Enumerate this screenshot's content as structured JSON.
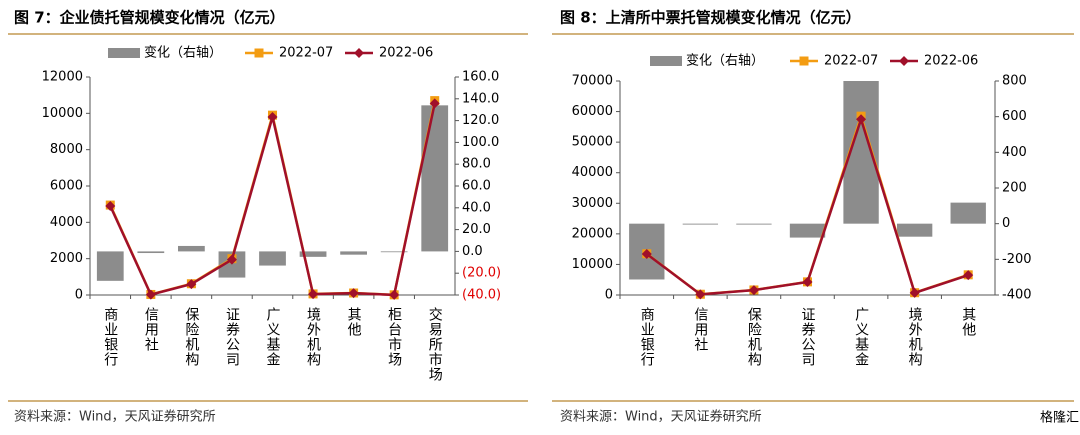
{
  "chart_data": [
    {
      "type": "combo",
      "title": "图 7：企业债托管规模变化情况（亿元）",
      "categories": [
        "商业银行",
        "信用社",
        "保险机构",
        "证券公司",
        "广义基金",
        "境外机构",
        "其他",
        "柜台市场",
        "交易所市场"
      ],
      "series": [
        {
          "name": "变化（右轴）",
          "type": "bar",
          "axis": "y2",
          "color": "#8c8c8c",
          "values": [
            -27,
            -1.5,
            5,
            -24,
            -13,
            -5,
            -3,
            0,
            134
          ]
        },
        {
          "name": "2022-07",
          "type": "line",
          "marker": "square",
          "color": "#f39c12",
          "values": [
            4950,
            30,
            620,
            2000,
            9900,
            60,
            110,
            10,
            10700
          ]
        },
        {
          "name": "2022-06",
          "type": "line",
          "marker": "diamond",
          "color": "#a0102a",
          "values": [
            4900,
            20,
            600,
            1950,
            9800,
            50,
            100,
            5,
            10550
          ]
        }
      ],
      "ylim": [
        0,
        12000
      ],
      "yticks": [
        0,
        2000,
        4000,
        6000,
        8000,
        10000,
        12000
      ],
      "y2lim": [
        -40,
        160
      ],
      "y2ticks": [
        {
          "value": -40,
          "label": "(40.0)"
        },
        {
          "value": -20,
          "label": "(20.0)"
        },
        {
          "value": 0,
          "label": "0.0"
        },
        {
          "value": 20,
          "label": "20.0"
        },
        {
          "value": 40,
          "label": "40.0"
        },
        {
          "value": 60,
          "label": "60.0"
        },
        {
          "value": 80,
          "label": "80.0"
        },
        {
          "value": 100,
          "label": "100.0"
        },
        {
          "value": 120,
          "label": "120.0"
        },
        {
          "value": 140,
          "label": "140.0"
        },
        {
          "value": 160,
          "label": "160.0"
        }
      ],
      "negative_tick_color": "#e00000",
      "source": "资料来源：Wind，天风证券研究所"
    },
    {
      "type": "combo",
      "title": "图 8：上清所中票托管规模变化情况（亿元）",
      "categories": [
        "商业银行",
        "信用社",
        "保险机构",
        "证券公司",
        "广义基金",
        "境外机构",
        "其他"
      ],
      "series": [
        {
          "name": "变化（右轴）",
          "type": "bar",
          "axis": "y2",
          "color": "#8c8c8c",
          "values": [
            -313,
            -5,
            -5,
            -78,
            800,
            -73,
            118
          ]
        },
        {
          "name": "2022-07",
          "type": "line",
          "marker": "square",
          "color": "#f39c12",
          "values": [
            13500,
            250,
            1650,
            4300,
            58500,
            750,
            6600
          ]
        },
        {
          "name": "2022-06",
          "type": "line",
          "marker": "diamond",
          "color": "#a0102a",
          "values": [
            13400,
            200,
            1600,
            4250,
            57500,
            700,
            6500
          ]
        }
      ],
      "ylim": [
        0,
        70000
      ],
      "yticks": [
        0,
        10000,
        20000,
        30000,
        40000,
        50000,
        60000,
        70000
      ],
      "y2lim": [
        -400,
        800
      ],
      "y2ticks": [
        -400,
        -200,
        0,
        200,
        400,
        600,
        800
      ],
      "source": "资料来源：Wind，天风证券研究所",
      "watermark": "格隆汇"
    }
  ]
}
